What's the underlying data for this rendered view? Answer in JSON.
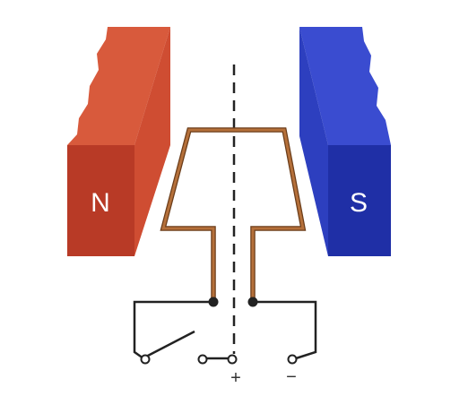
{
  "magnets": {
    "north": {
      "label": "N",
      "front_color": "#b83a26",
      "side_color": "#cf4d32",
      "top_color": "#d85a3c"
    },
    "south": {
      "label": "S",
      "front_color": "#1f2fa6",
      "side_color": "#2d3fbf",
      "top_color": "#3a4cd0"
    }
  },
  "coil": {
    "color": "#b5703a",
    "outline_color": "#6b3d1a"
  },
  "axis": {
    "color": "#222222"
  },
  "circuit": {
    "wire_color": "#222222",
    "terminals": {
      "plus_label": "+",
      "minus_label": "−"
    }
  }
}
